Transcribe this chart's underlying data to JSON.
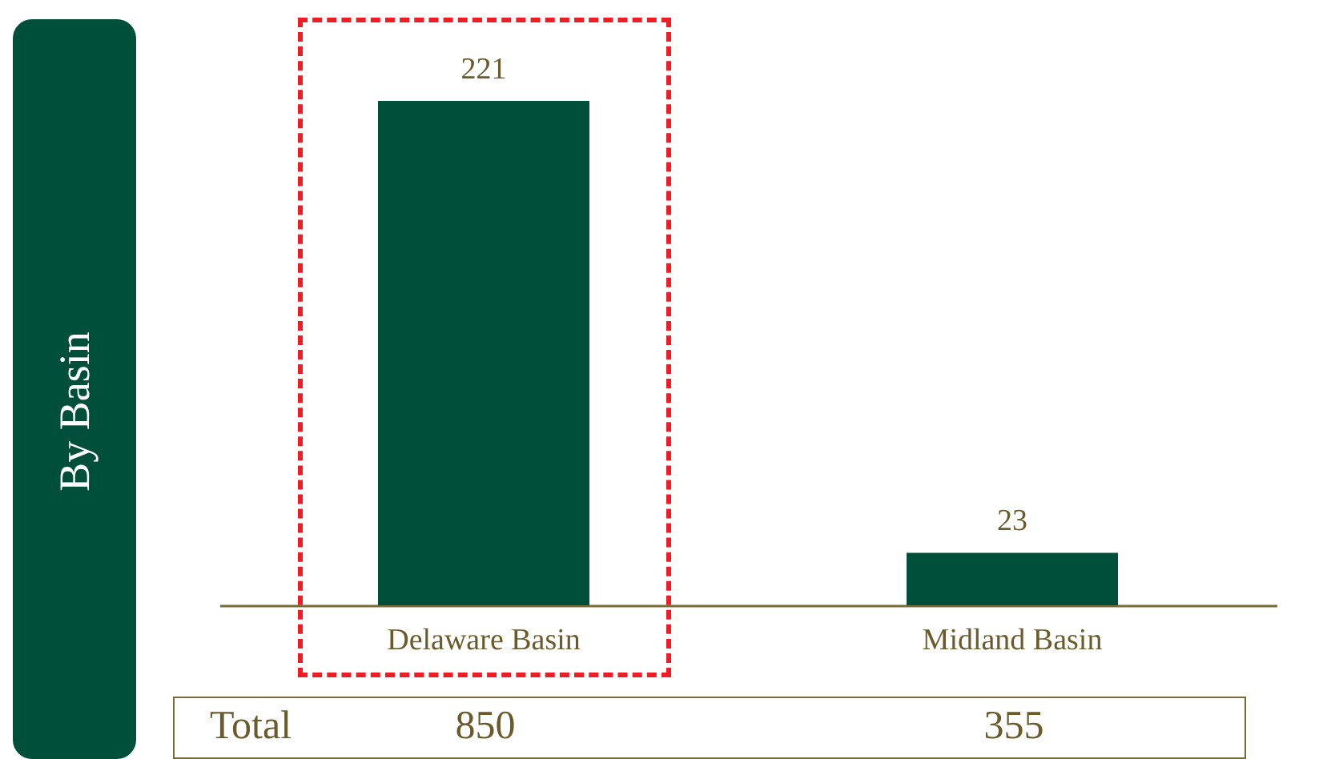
{
  "chart_data": {
    "type": "bar",
    "ylabel": "By Basin",
    "categories": [
      "Delaware Basin",
      "Midland Basin"
    ],
    "values": [
      221,
      23
    ],
    "color": "#004f3b",
    "data_labels": true,
    "annotations": [
      "Total",
      "850",
      "355"
    ]
  }
}
